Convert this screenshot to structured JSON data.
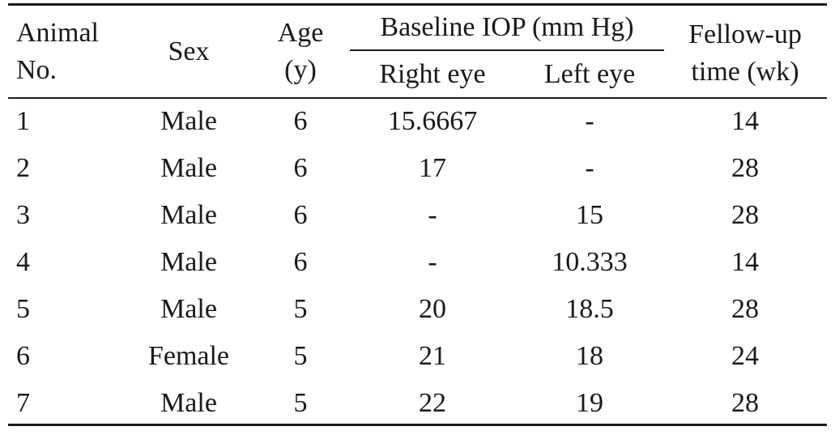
{
  "table": {
    "header": {
      "animal_line1": "Animal",
      "animal_line2": "No.",
      "sex": "Sex",
      "age_line1": "Age",
      "age_line2": "(y)",
      "iop_group": "Baseline IOP (mm Hg)",
      "right_eye": "Right eye",
      "left_eye": "Left eye",
      "followup_line1": "Fellow-up",
      "followup_line2": "time (wk)"
    },
    "rows": [
      {
        "animal": "1",
        "sex": "Male",
        "age": "6",
        "right": "15.6667",
        "left": "-",
        "followup": "14"
      },
      {
        "animal": "2",
        "sex": "Male",
        "age": "6",
        "right": "17",
        "left": "-",
        "followup": "28"
      },
      {
        "animal": "3",
        "sex": "Male",
        "age": "6",
        "right": "-",
        "left": "15",
        "followup": "28"
      },
      {
        "animal": "4",
        "sex": "Male",
        "age": "6",
        "right": "-",
        "left": "10.333",
        "followup": "14"
      },
      {
        "animal": "5",
        "sex": "Male",
        "age": "5",
        "right": "20",
        "left": "18.5",
        "followup": "28"
      },
      {
        "animal": "6",
        "sex": "Female",
        "age": "5",
        "right": "21",
        "left": "18",
        "followup": "24"
      },
      {
        "animal": "7",
        "sex": "Male",
        "age": "5",
        "right": "22",
        "left": "19",
        "followup": "28"
      }
    ]
  }
}
